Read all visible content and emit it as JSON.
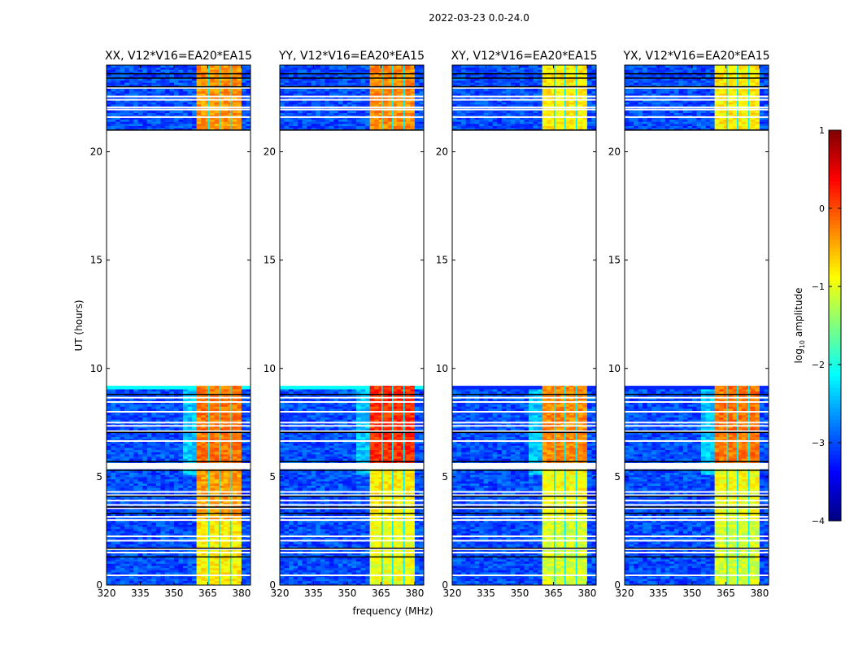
{
  "chart_data": {
    "type": "heatmap",
    "suptitle": "2022-03-23 0.0-24.0",
    "xlabel": "frequency (MHz)",
    "ylabel": "UT (hours)",
    "xlim": [
      320,
      384
    ],
    "ylim": [
      0,
      24
    ],
    "xticks": [
      320,
      335,
      350,
      365,
      380
    ],
    "yticks": [
      0,
      5,
      10,
      15,
      20
    ],
    "colorbar": {
      "label_main": "log",
      "label_sub": "10",
      "label_rest": " amplitude",
      "range": [
        -4,
        1
      ],
      "ticks": [
        -4,
        -3,
        -2,
        -1,
        0,
        1
      ],
      "tick_labels": [
        "−4",
        "−3",
        "−2",
        "−1",
        "0",
        "1"
      ],
      "colormap": "jet"
    },
    "time_coverage_hours": [
      [
        0,
        5.35
      ],
      [
        5.65,
        9.2
      ],
      [
        21.0,
        24.0
      ]
    ],
    "flagged_rows_hours": [
      0.45,
      1.5,
      1.65,
      2.05,
      2.25,
      3.0,
      3.15,
      3.55,
      3.7,
      3.9,
      4.15,
      4.3,
      6.65,
      7.1,
      7.35,
      7.5,
      8.0,
      8.45,
      8.65,
      21.6,
      21.95,
      22.05,
      22.4,
      22.55,
      22.95
    ],
    "dark_rows_hours": [
      1.3,
      1.7,
      3.3,
      3.6,
      4.1,
      5.3,
      5.7,
      7.05,
      8.8,
      21.0,
      23.0,
      23.4,
      23.6
    ],
    "band_mhz": [
      360.5,
      380.0
    ],
    "shoulder_mhz": [
      354,
      360.5
    ],
    "gap_channels_mhz": [
      365.5,
      370.2,
      375.2
    ],
    "background_level": -3.0,
    "panels": [
      {
        "title": "XX, V12*V16=EA20*EA15",
        "band_levels": {
          "0-3": -0.8,
          "3-5.35": -0.4,
          "5.65-9.2": -0.2,
          "21-24": -0.35
        },
        "edge_row_level": -2.1
      },
      {
        "title": "YY, V12*V16=EA20*EA15",
        "band_levels": {
          "0-3": -0.95,
          "3-5.35": -0.8,
          "5.65-9.2": 0.15,
          "21-24": -0.3
        },
        "edge_row_level": -2.1
      },
      {
        "title": "XY, V12*V16=EA20*EA15",
        "band_levels": {
          "0-3": -1.1,
          "3-5.35": -0.9,
          "5.65-9.2": -0.3,
          "21-24": -0.8
        },
        "edge_row_level": -3.2
      },
      {
        "title": "YX, V12*V16=EA20*EA15",
        "band_levels": {
          "0-3": -1.1,
          "3-5.35": -0.9,
          "5.65-9.2": -0.2,
          "21-24": -0.8
        },
        "edge_row_level": -3.2
      }
    ]
  }
}
